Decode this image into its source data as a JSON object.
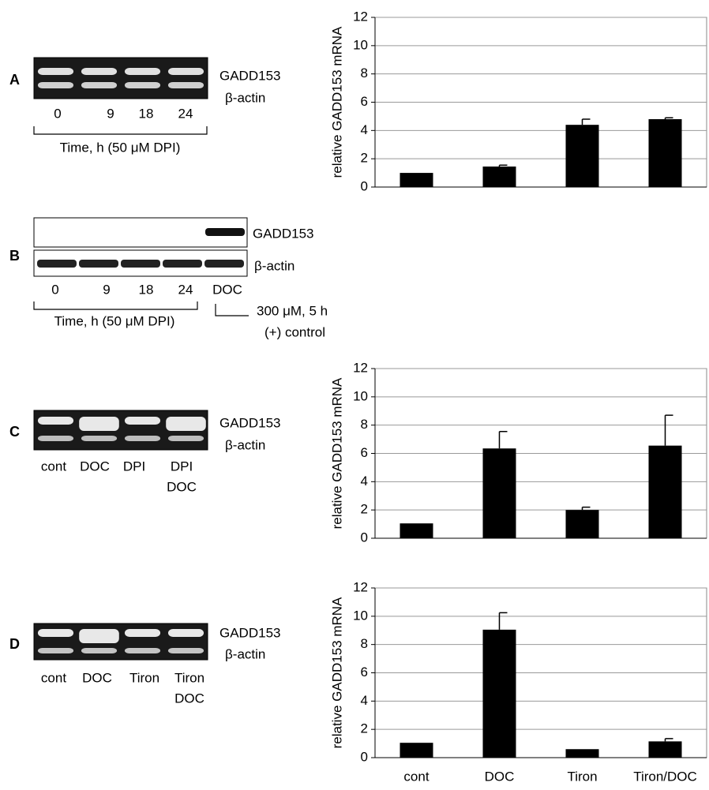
{
  "chart_data": [
    {
      "type": "bar",
      "ylabel": "relative GADD153 mRNA",
      "categories": [
        null,
        null,
        null,
        null
      ],
      "values": [
        1.0,
        1.45,
        4.4,
        4.8
      ],
      "errors": [
        0.0,
        0.1,
        0.4,
        0.1
      ],
      "color": "#000000",
      "ylim": [
        0,
        12
      ],
      "yticks": [
        0,
        2,
        4,
        6,
        8,
        10,
        12
      ],
      "grid": true
    },
    {
      "type": "bar",
      "ylabel": "relative GADD153 mRNA",
      "categories": [
        null,
        null,
        null,
        null
      ],
      "values": [
        1.05,
        6.35,
        2.0,
        6.55
      ],
      "errors": [
        0.0,
        1.2,
        0.2,
        2.15
      ],
      "color": "#000000",
      "ylim": [
        0,
        12
      ],
      "yticks": [
        0,
        2,
        4,
        6,
        8,
        10,
        12
      ],
      "grid": true
    },
    {
      "type": "bar",
      "ylabel": "relative GADD153 mRNA",
      "categories": [
        "cont",
        "DOC",
        "Tiron",
        "Tiron/DOC"
      ],
      "values": [
        1.05,
        9.05,
        0.6,
        1.15
      ],
      "errors": [
        0.0,
        1.2,
        0.0,
        0.2
      ],
      "color": "#000000",
      "ylim": [
        0,
        12
      ],
      "yticks": [
        0,
        2,
        4,
        6,
        8,
        10,
        12
      ],
      "grid": true
    }
  ],
  "panels": [
    {
      "letter": "A",
      "labels": [
        "GADD153",
        "β-actin"
      ],
      "lanes": [
        [
          "0"
        ],
        [
          "9"
        ],
        [
          "18"
        ],
        [
          "24"
        ]
      ],
      "caption": "Time, h (50 μM DPI)"
    },
    {
      "letter": "B",
      "labels": [
        "GADD153",
        "β-actin"
      ],
      "lanes": [
        [
          "0"
        ],
        [
          "9"
        ],
        [
          "18"
        ],
        [
          "24"
        ],
        [
          "DOC"
        ]
      ],
      "caption": "Time, h (50 μM DPI)",
      "note": [
        "300 μM, 5 h",
        "(+) control"
      ]
    },
    {
      "letter": "C",
      "labels": [
        "GADD153",
        "β-actin"
      ],
      "lanes": [
        [
          "cont"
        ],
        [
          "DOC"
        ],
        [
          "DPI"
        ],
        [
          "DPI",
          "DOC"
        ]
      ]
    },
    {
      "letter": "D",
      "labels": [
        "GADD153",
        "β-actin"
      ],
      "lanes": [
        [
          "cont"
        ],
        [
          "DOC"
        ],
        [
          "Tiron"
        ],
        [
          "Tiron",
          "DOC"
        ]
      ]
    }
  ]
}
